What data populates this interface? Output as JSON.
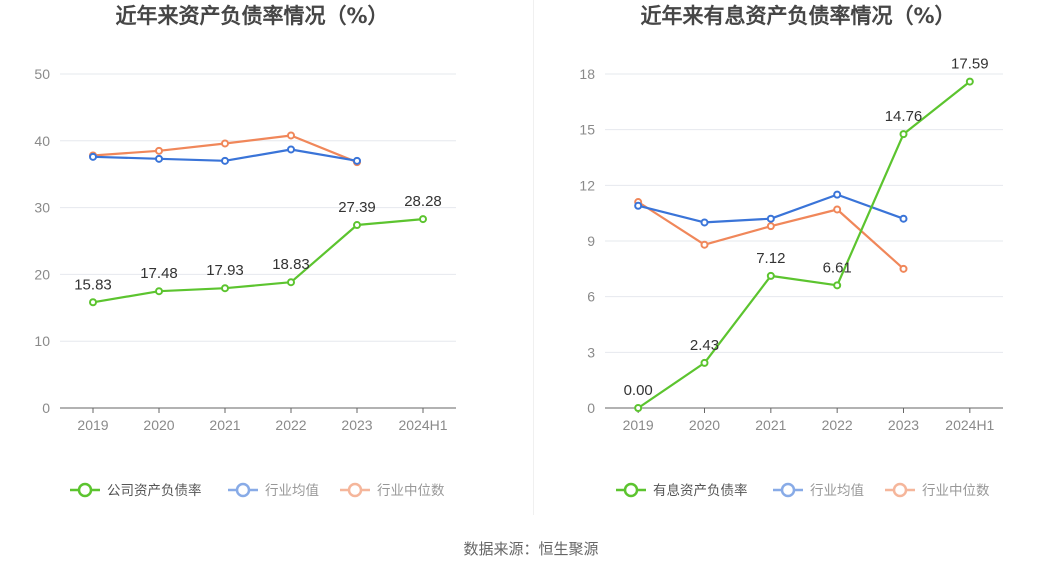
{
  "chart_data": [
    {
      "type": "line",
      "title": "近年来资产负债率情况（%）",
      "categories": [
        "2019",
        "2020",
        "2021",
        "2022",
        "2023",
        "2024H1"
      ],
      "yticks": [
        "0",
        "10",
        "20",
        "30",
        "40",
        "50"
      ],
      "ylim": [
        0,
        50
      ],
      "series": [
        {
          "name": "公司资产负债率",
          "color": "#5cc42f",
          "labels": true,
          "values": [
            15.83,
            17.48,
            17.93,
            18.83,
            27.39,
            28.28
          ],
          "value_labels": [
            "15.83",
            "17.48",
            "17.93",
            "18.83",
            "27.39",
            "28.28"
          ]
        },
        {
          "name": "行业均值",
          "color": "#3a74d8",
          "labels": false,
          "values": [
            37.6,
            37.3,
            37.0,
            38.7,
            37.0,
            null
          ]
        },
        {
          "name": "行业中位数",
          "color": "#f0875a",
          "labels": false,
          "values": [
            37.8,
            38.5,
            39.6,
            40.8,
            36.8,
            null
          ]
        }
      ]
    },
    {
      "type": "line",
      "title": "近年来有息资产负债率情况（%）",
      "categories": [
        "2019",
        "2020",
        "2021",
        "2022",
        "2023",
        "2024H1"
      ],
      "yticks": [
        "0",
        "3",
        "6",
        "9",
        "12",
        "15",
        "18"
      ],
      "ylim": [
        0,
        18
      ],
      "series": [
        {
          "name": "有息资产负债率",
          "color": "#5cc42f",
          "labels": true,
          "values": [
            0.0,
            2.43,
            7.12,
            6.61,
            14.76,
            17.59
          ],
          "value_labels": [
            "0.00",
            "2.43",
            "7.12",
            "6.61",
            "14.76",
            "17.59"
          ]
        },
        {
          "name": "行业均值",
          "color": "#3a74d8",
          "labels": false,
          "values": [
            10.9,
            10.0,
            10.2,
            11.5,
            10.2,
            null
          ]
        },
        {
          "name": "行业中位数",
          "color": "#f0875a",
          "labels": false,
          "values": [
            11.1,
            8.8,
            9.8,
            10.7,
            7.5,
            null
          ]
        }
      ]
    }
  ],
  "footer": {
    "source": "数据来源：恒生聚源"
  }
}
